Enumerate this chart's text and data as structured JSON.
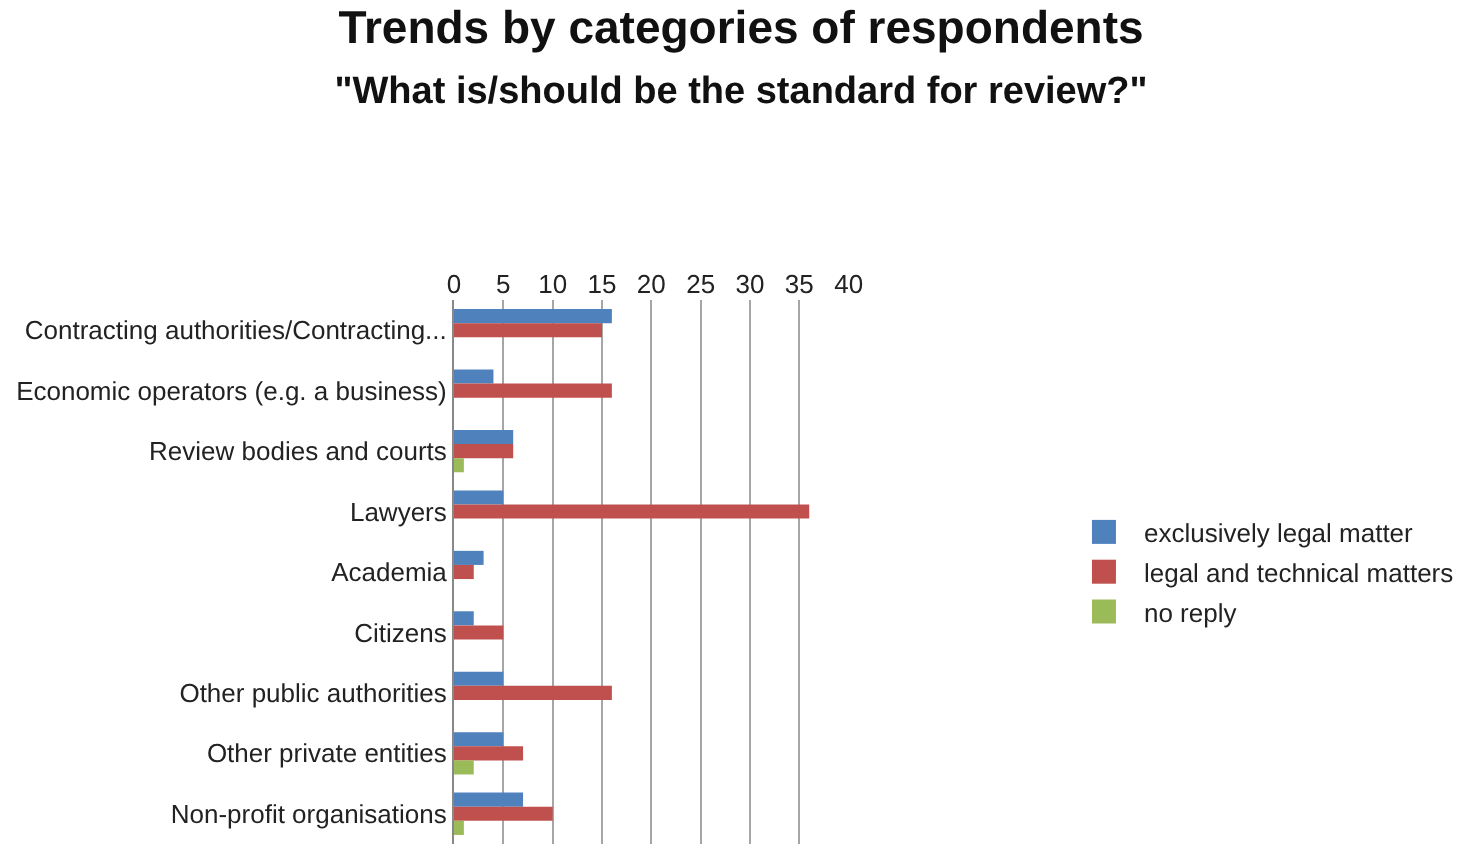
{
  "chart_data": {
    "type": "bar",
    "orientation": "horizontal",
    "title": "Trends by categories of respondents",
    "subtitle": "\"What is/should be the standard for review?\"",
    "categories": [
      "Contracting authorities/Contracting...",
      "Economic operators (e.g. a business)",
      "Review bodies and courts",
      "Lawyers",
      "Academia",
      "Citizens",
      "Other public authorities",
      "Other private entities",
      "Non-profit organisations"
    ],
    "series": [
      {
        "name": "exclusively legal matter",
        "color": "#4f81bd",
        "values": [
          16,
          4,
          6,
          5,
          3,
          2,
          5,
          5,
          7
        ]
      },
      {
        "name": "legal and technical matters",
        "color": "#c0504d",
        "values": [
          15,
          16,
          6,
          36,
          2,
          5,
          16,
          7,
          10
        ]
      },
      {
        "name": "no reply",
        "color": "#9bbb59",
        "values": [
          0,
          0,
          1,
          0,
          0,
          0,
          0,
          2,
          1
        ]
      }
    ],
    "xlim": [
      0,
      40
    ],
    "xticks": [
      0,
      5,
      10,
      15,
      20,
      25,
      30,
      35,
      40
    ],
    "grid": "x",
    "legend": "right"
  }
}
